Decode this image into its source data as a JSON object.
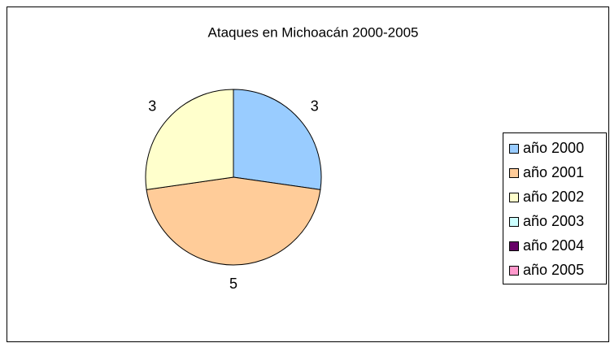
{
  "chart_data": {
    "type": "pie",
    "title": "Ataques en Michoacán 2000-2005",
    "categories": [
      "año 2000",
      "año 2001",
      "año 2002",
      "año 2003",
      "año 2004",
      "año 2005"
    ],
    "values": [
      3,
      5,
      3,
      0,
      0,
      0
    ],
    "colors": [
      "#99ccff",
      "#ffcc99",
      "#ffffcc",
      "#ccffff",
      "#660066",
      "#ff99cc"
    ],
    "legend": "right"
  }
}
